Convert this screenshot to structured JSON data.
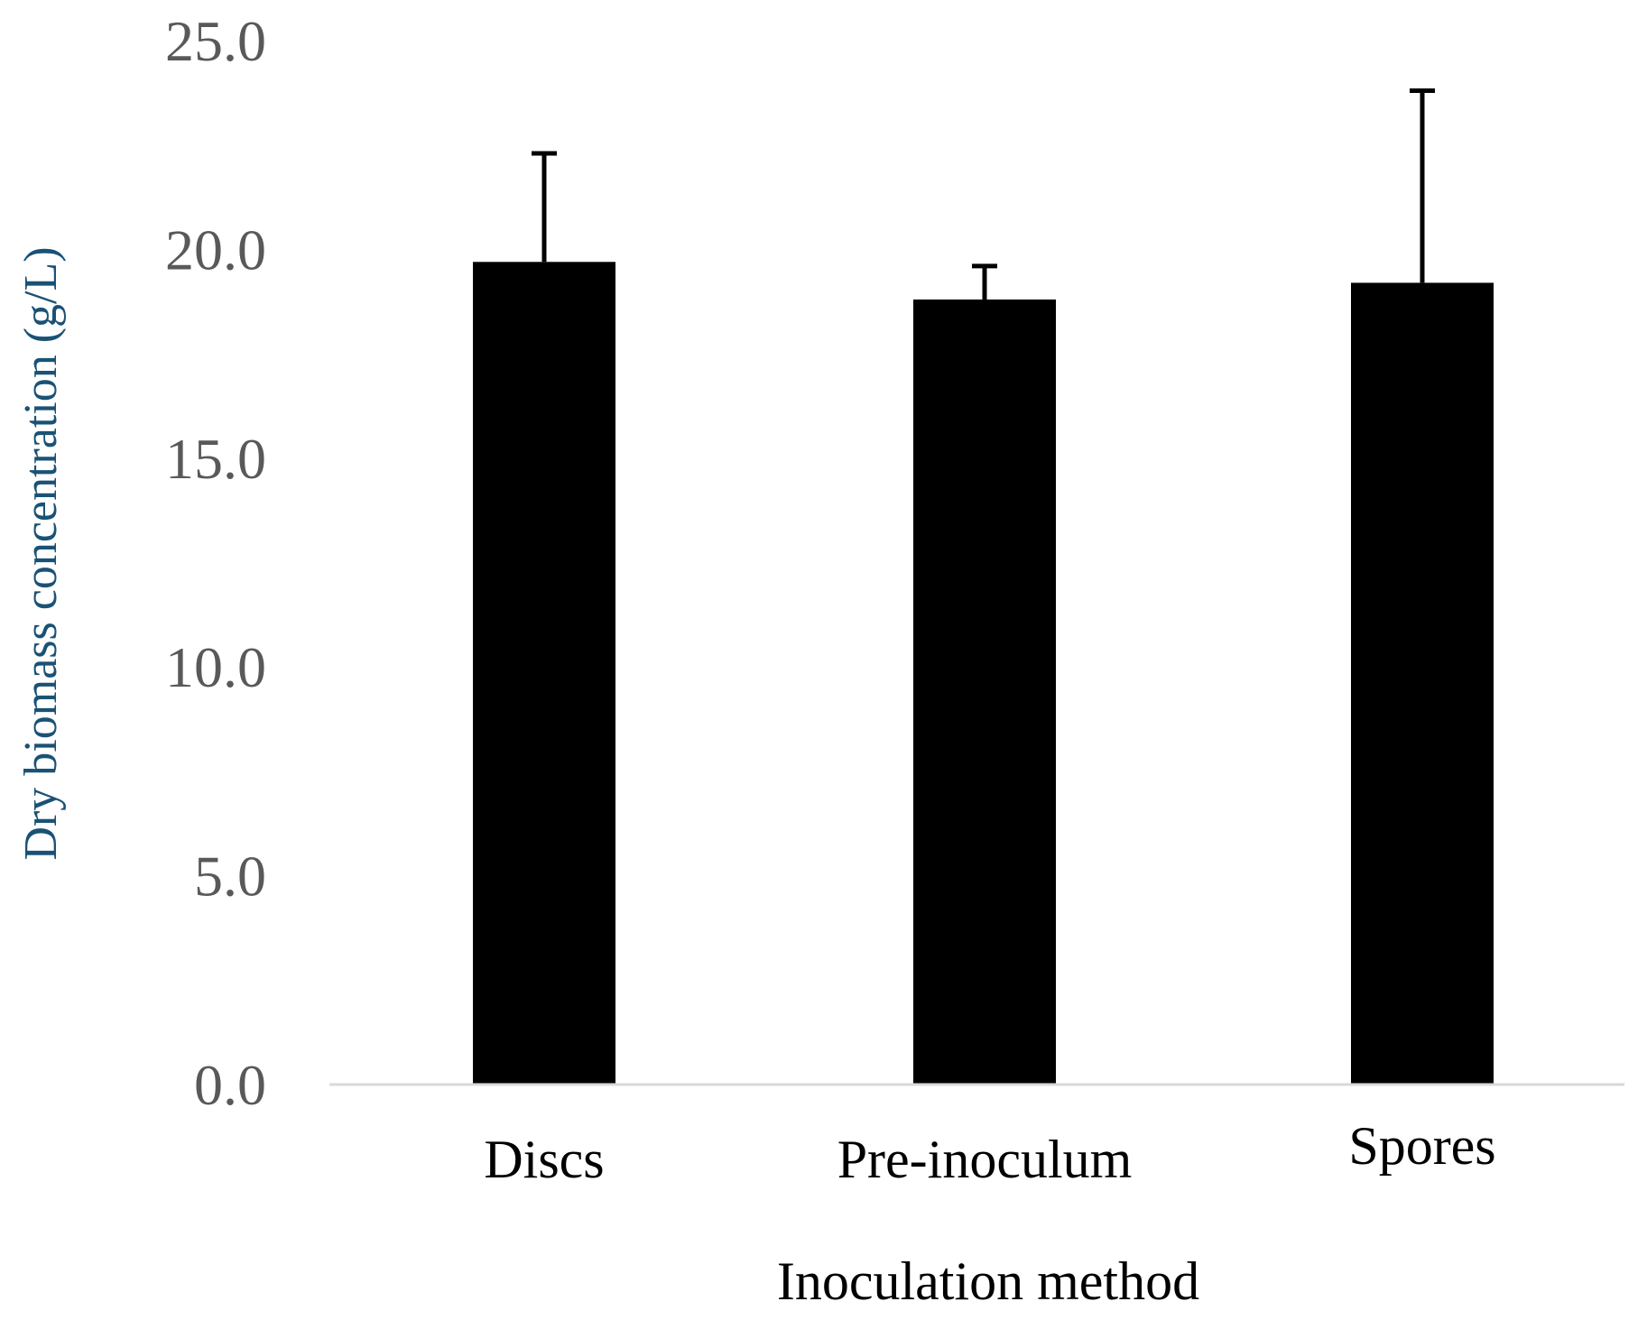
{
  "chart_data": {
    "type": "bar",
    "title": "",
    "categories": [
      "Discs",
      "Pre-inoculum",
      "Spores"
    ],
    "values": [
      19.7,
      18.8,
      19.2
    ],
    "error": [
      2.6,
      0.8,
      4.6
    ],
    "xlabel": "Inoculation method",
    "ylabel": "Dry biomass concentration (g/L)",
    "ylim": [
      0,
      25
    ],
    "yticks": [
      "0.0",
      "5.0",
      "10.0",
      "15.0",
      "20.0",
      "25.0"
    ],
    "grid": false,
    "legend": "none",
    "colors": {
      "bar": "#000000",
      "axis": "#d9d9d9",
      "tick_text": "#595959",
      "ylabel_text": "#1a5276"
    }
  }
}
